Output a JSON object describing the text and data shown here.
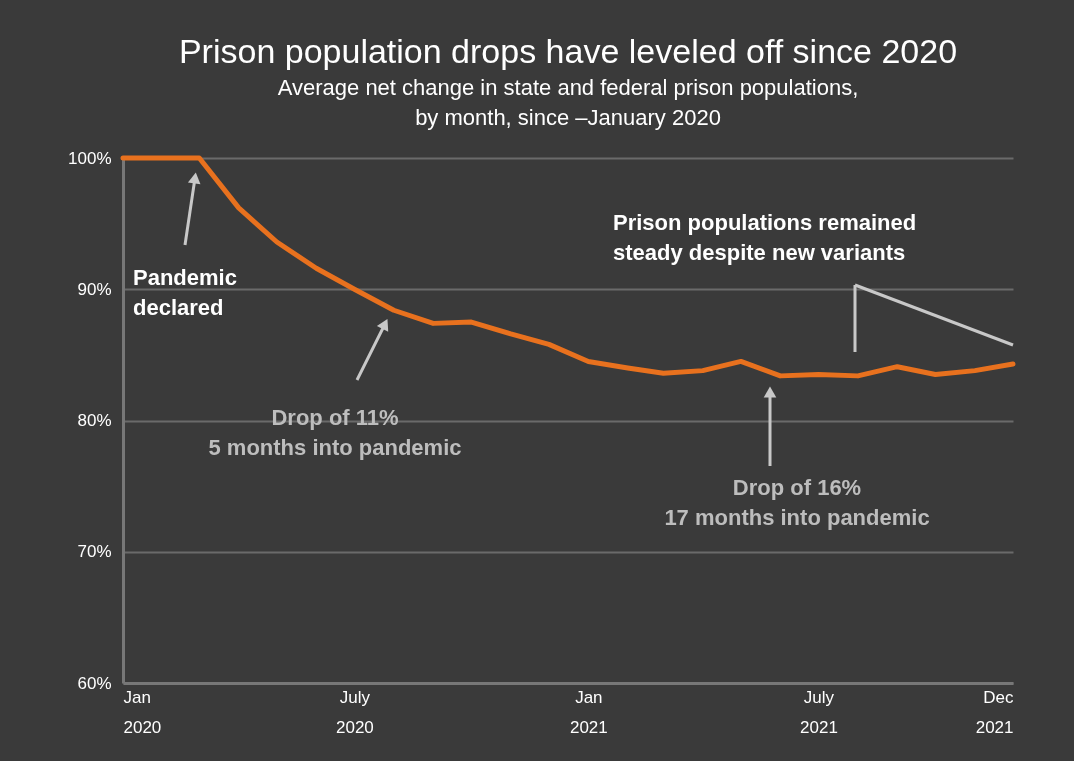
{
  "chart_data": {
    "type": "line",
    "title": "Prison population drops have leveled off since 2020",
    "subtitle": "Average net change in state and federal prison populations, by month, since –January 2020",
    "x": [
      "2020-01",
      "2020-02",
      "2020-03",
      "2020-04",
      "2020-05",
      "2020-06",
      "2020-07",
      "2020-08",
      "2020-09",
      "2020-10",
      "2020-11",
      "2020-12",
      "2021-01",
      "2021-02",
      "2021-03",
      "2021-04",
      "2021-05",
      "2021-06",
      "2021-07",
      "2021-08",
      "2021-09",
      "2021-10",
      "2021-11",
      "2021-12"
    ],
    "series": [
      {
        "color": "#e8711e",
        "values": [
          100,
          100,
          100,
          96.2,
          93.6,
          91.6,
          90,
          88.4,
          87.4,
          87.5,
          86.6,
          85.8,
          84.5,
          84,
          83.6,
          83.8,
          84.5,
          83.4,
          83.5,
          83.4,
          84.1,
          83.5,
          83.8,
          84.3
        ]
      }
    ],
    "xlim": [
      "2020-01",
      "2021-12"
    ],
    "xticks": [
      {
        "value": "2020-01",
        "label": "Jan 2020"
      },
      {
        "value": "2020-07",
        "label": "July 2020"
      },
      {
        "value": "2021-01",
        "label": "Jan 2021"
      },
      {
        "value": "2021-07",
        "label": "July 2021"
      },
      {
        "value": "2021-12",
        "label": "Dec 2021"
      }
    ],
    "ylim": [
      60,
      100
    ],
    "yticks": [
      {
        "value": 60,
        "label": "60%"
      },
      {
        "value": 70,
        "label": "70%"
      },
      {
        "value": 80,
        "label": "80%"
      },
      {
        "value": 90,
        "label": "90%"
      },
      {
        "value": 100,
        "label": "100%"
      }
    ],
    "grid": "y",
    "line_style": "solid",
    "marker": "none",
    "annotations": [
      "Pandemic declared",
      "Drop of 11% 5 months into pandemic",
      "Drop of 16% 17 months into pandemic",
      "Prison populations remained steady despite new variants"
    ]
  }
}
